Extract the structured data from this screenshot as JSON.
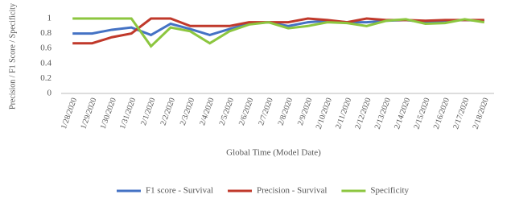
{
  "chart_data": {
    "type": "line",
    "x_label": "Global Time (Model Date)",
    "y_label": "Precision / F1 Score / Specificity",
    "categories": [
      "1/28/2020",
      "1/29/2020",
      "1/30/2020",
      "1/31/2020",
      "2/1/2020",
      "2/2/2020",
      "2/3/2020",
      "2/4/2020",
      "2/5/2020",
      "2/6/2020",
      "2/7/2020",
      "2/8/2020",
      "2/9/2020",
      "2/10/2020",
      "2/11/2020",
      "2/12/2020",
      "2/13/2020",
      "2/14/2020",
      "2/15/2020",
      "2/16/2020",
      "2/17/2020",
      "2/18/2020"
    ],
    "series": [
      {
        "name": "F1 score - Survival",
        "color": "#4472c4",
        "values": [
          0.8,
          0.8,
          0.85,
          0.88,
          0.78,
          0.93,
          0.86,
          0.78,
          0.86,
          0.93,
          0.95,
          0.9,
          0.95,
          0.97,
          0.95,
          0.95,
          0.97,
          0.98,
          0.95,
          0.97,
          0.98,
          0.97
        ]
      },
      {
        "name": "Precision - Survival",
        "color": "#c0392b",
        "values": [
          0.67,
          0.67,
          0.75,
          0.8,
          1.0,
          1.0,
          0.9,
          0.9,
          0.9,
          0.95,
          0.95,
          0.95,
          1.0,
          0.98,
          0.95,
          1.0,
          0.98,
          0.98,
          0.97,
          0.98,
          0.98,
          0.98
        ]
      },
      {
        "name": "Specificity",
        "color": "#8cc63f",
        "values": [
          1.0,
          1.0,
          1.0,
          1.0,
          0.63,
          0.88,
          0.83,
          0.67,
          0.83,
          0.92,
          0.95,
          0.87,
          0.9,
          0.95,
          0.94,
          0.9,
          0.97,
          0.99,
          0.93,
          0.94,
          0.99,
          0.95
        ]
      }
    ],
    "ylim": [
      0,
      1
    ],
    "yticks": [
      0,
      0.2,
      0.4,
      0.6,
      0.8,
      1
    ],
    "grid": false
  }
}
